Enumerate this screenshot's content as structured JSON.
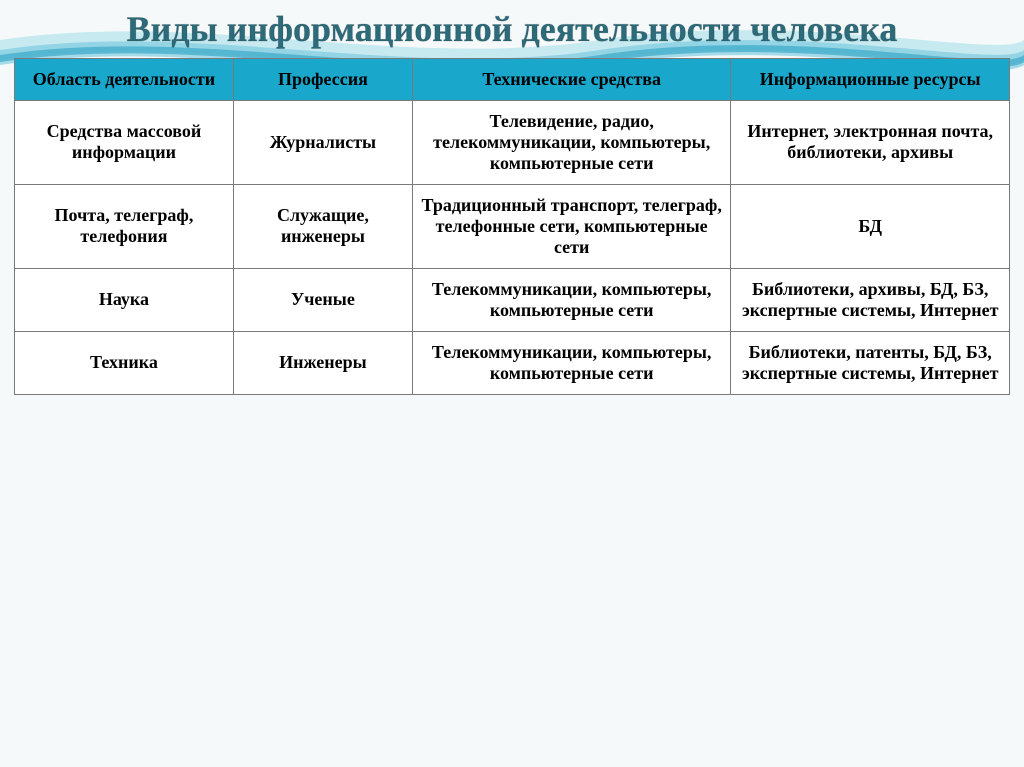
{
  "title": "Виды информационной деятельности человека",
  "title_color": "#2c6b7a",
  "title_fontsize": 36,
  "background_color": "#f5f9fa",
  "wave_colors": [
    "#3aa9c9",
    "#6fc6dd",
    "#a8dde9"
  ],
  "table": {
    "header_background": "#1aa7cc",
    "header_text_color": "#000000",
    "header_fontsize": 18,
    "body_fontsize": 18,
    "body_text_color": "#000000",
    "cell_border_color": "#7a7a7a",
    "columns": [
      "Область деятельности",
      "Профессия",
      "Технические средства",
      "Информационные ресурсы"
    ],
    "col_widths_pct": [
      22,
      18,
      32,
      28
    ],
    "rows": [
      [
        "Средства массовой информации",
        "Журналисты",
        "Телевидение, радио, телекоммуникации, компьютеры, компьютерные сети",
        "Интернет, электронная почта, библиотеки, архивы"
      ],
      [
        "Почта, телеграф, телефония",
        "Служащие, инженеры",
        "Традиционный транспорт, телеграф, телефонные сети, компьютерные сети",
        "БД"
      ],
      [
        "Наука",
        "Ученые",
        "Телекоммуникации, компьютеры, компьютерные сети",
        "Библиотеки, архивы, БД, БЗ, экспертные системы, Интернет"
      ],
      [
        "Техника",
        "Инженеры",
        "Телекоммуникации, компьютеры, компьютерные сети",
        "Библиотеки, патенты, БД, БЗ, экспертные системы, Интернет"
      ]
    ]
  }
}
